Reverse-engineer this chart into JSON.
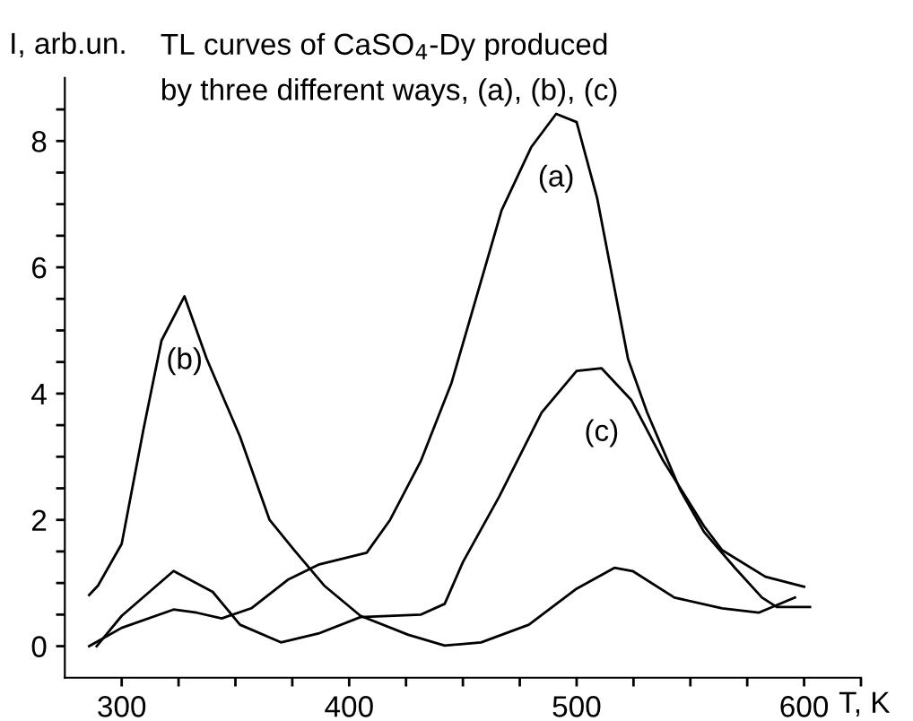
{
  "chart_data": {
    "type": "line",
    "title": "TL curves of CaSO$_{4}$-Dy produced\nby three different ways, (a), (b), (c)",
    "xlabel": "T, K",
    "ylabel": "I, arb.un.",
    "xlim": [
      275,
      625
    ],
    "ylim": [
      -0.5,
      9
    ],
    "xticks": [
      300,
      {
        "value": 325,
        "label": null
      },
      {
        "value": 350,
        "label": null
      },
      {
        "value": 375,
        "label": null
      },
      400,
      {
        "value": 425,
        "label": null
      },
      {
        "value": 450,
        "label": null
      },
      {
        "value": 475,
        "label": null
      },
      500,
      {
        "value": 525,
        "label": null
      },
      {
        "value": 550,
        "label": null
      },
      {
        "value": 575,
        "label": null
      },
      600,
      {
        "value": 625,
        "label": null
      }
    ],
    "yticks": [
      0,
      {
        "value": 0.5,
        "label": null
      },
      {
        "value": 1,
        "label": null
      },
      {
        "value": 1.5,
        "label": null
      },
      2,
      {
        "value": 2.5,
        "label": null
      },
      {
        "value": 3,
        "label": null
      },
      {
        "value": 3.5,
        "label": null
      },
      4,
      {
        "value": 4.5,
        "label": null
      },
      {
        "value": 5,
        "label": null
      },
      {
        "value": 5.5,
        "label": null
      },
      6,
      {
        "value": 6.5,
        "label": null
      },
      {
        "value": 7,
        "label": null
      },
      {
        "value": 7.5,
        "label": null
      },
      8,
      {
        "value": 8.5,
        "label": null
      }
    ],
    "grid": false,
    "legend": false,
    "marker": "none",
    "line_style": "solid",
    "series": [
      {
        "name": "(a)",
        "color": "#000000",
        "x": [
          285.7,
          300,
          322.8,
          333,
          344,
          357,
          373,
          386.5,
          407.7,
          418,
          431.6,
          445,
          467,
          480,
          491,
          500,
          509,
          522.6,
          531,
          545.6,
          556,
          569.6,
          581.5,
          588,
          602.6
        ],
        "values": [
          0,
          0.29,
          0.58,
          0.53,
          0.44,
          0.6,
          1.05,
          1.29,
          1.48,
          2.0,
          2.94,
          4.17,
          6.9,
          7.9,
          8.43,
          8.3,
          7.1,
          4.55,
          3.7,
          2.47,
          1.81,
          1.24,
          0.77,
          0.62,
          0.62
        ]
      },
      {
        "name": "(b)",
        "color": "#000000",
        "x": [
          285.7,
          289.6,
          300,
          309.5,
          317.5,
          327.6,
          337.4,
          352,
          365,
          375.9,
          389,
          405,
          426,
          442,
          458,
          479,
          500,
          516.6,
          524.6,
          543,
          564,
          580,
          596
        ],
        "values": [
          0.81,
          0.96,
          1.62,
          3.42,
          4.84,
          5.54,
          4.55,
          3.32,
          2.0,
          1.52,
          0.96,
          0.48,
          0.18,
          0.01,
          0.06,
          0.34,
          0.91,
          1.24,
          1.19,
          0.77,
          0.6,
          0.53,
          0.77
        ]
      },
      {
        "name": "(c)",
        "color": "#000000",
        "x": [
          289,
          300,
          322.8,
          340,
          352,
          370,
          386.5,
          405,
          431.6,
          442,
          450,
          466,
          484.6,
          500,
          511,
          524,
          538,
          556,
          564,
          583,
          600
        ],
        "values": [
          0,
          0.48,
          1.19,
          0.86,
          0.34,
          0.06,
          0.2,
          0.46,
          0.5,
          0.67,
          1.33,
          2.37,
          3.7,
          4.36,
          4.4,
          3.9,
          2.94,
          1.9,
          1.52,
          1.1,
          0.94
        ]
      }
    ]
  }
}
